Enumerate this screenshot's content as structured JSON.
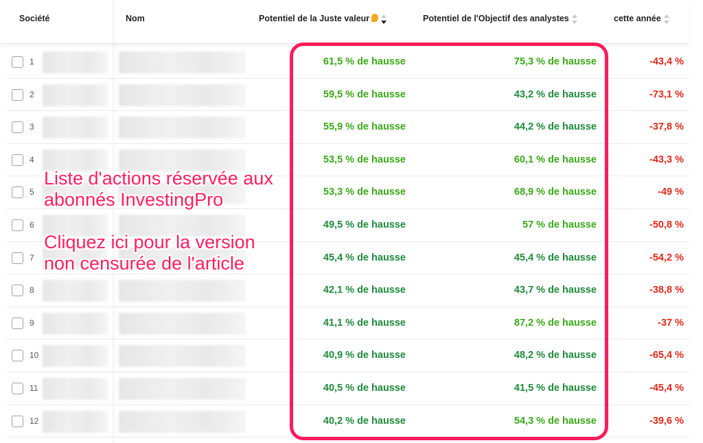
{
  "header": {
    "societe": "Société",
    "nom": "Nom",
    "juste_valeur": "Potentiel de la Juste valeur",
    "objectif": "Potentiel de l'Objectif des analystes",
    "annee": "cette année"
  },
  "colors": {
    "up_strong": "#3aa818",
    "up": "#1e8a3c",
    "down": "#e0281b",
    "highlight": "#ff1a5a"
  },
  "rows": [
    {
      "n": "1",
      "fv": "61,5 % de hausse",
      "obj": "75,3 % de hausse",
      "ytd": "-43,4 %"
    },
    {
      "n": "2",
      "fv": "59,5 % de hausse",
      "obj": "43,2 % de hausse",
      "ytd": "-73,1 %"
    },
    {
      "n": "3",
      "fv": "55,9 % de hausse",
      "obj": "44,2 % de hausse",
      "ytd": "-37,8 %"
    },
    {
      "n": "4",
      "fv": "53,5 % de hausse",
      "obj": "60,1 % de hausse",
      "ytd": "-43,3 %"
    },
    {
      "n": "5",
      "fv": "53,3 % de hausse",
      "obj": "68,9 % de hausse",
      "ytd": "-49 %"
    },
    {
      "n": "6",
      "fv": "49,5 % de hausse",
      "obj": "57 % de hausse",
      "ytd": "-50,8 %"
    },
    {
      "n": "7",
      "fv": "45,4 % de hausse",
      "obj": "45,4 % de hausse",
      "ytd": "-54,2 %"
    },
    {
      "n": "8",
      "fv": "42,1 % de hausse",
      "obj": "43,7 % de hausse",
      "ytd": "-38,8 %"
    },
    {
      "n": "9",
      "fv": "41,1 % de hausse",
      "obj": "87,2 % de hausse",
      "ytd": "-37 %"
    },
    {
      "n": "10",
      "fv": "40,9 % de hausse",
      "obj": "48,2 % de hausse",
      "ytd": "-65,4 %"
    },
    {
      "n": "11",
      "fv": "40,5 % de hausse",
      "obj": "41,5 % de hausse",
      "ytd": "-45,4 %"
    },
    {
      "n": "12",
      "fv": "40,2 % de hausse",
      "obj": "54,3 % de hausse",
      "ytd": "-39,6 %"
    }
  ],
  "overlay": {
    "line1": "Liste d'actions réservée aux",
    "line2": "abonnés InvestingPro",
    "line3": "Cliquez ici pour la version",
    "line4": "non censurée de l'article"
  }
}
